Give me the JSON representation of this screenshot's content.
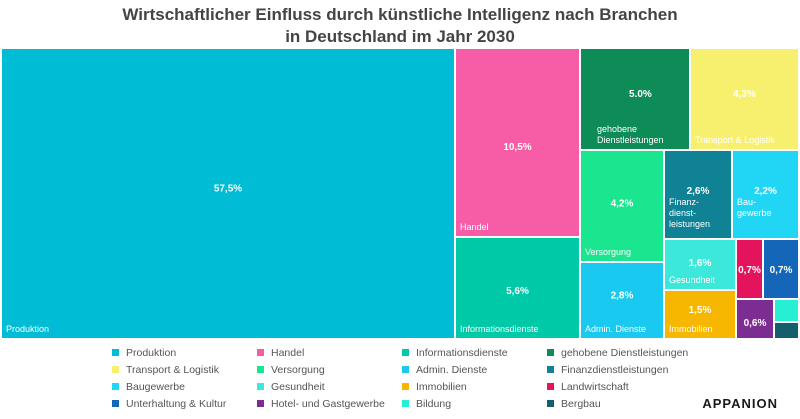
{
  "title": {
    "line1": "Wirtschaftlicher Einfluss durch künstliche Intelligenz nach Branchen",
    "line2": "in Deutschland im Jahr 2030"
  },
  "brand": "APPANION",
  "chart_data": {
    "type": "treemap",
    "title": "Wirtschaftlicher Einfluss durch künstliche Intelligenz nach Branchen in Deutschland im Jahr 2030",
    "unit": "%",
    "items": [
      {
        "id": "produktion",
        "name": "Produktion",
        "value": 57.5,
        "value_label": "57,5%",
        "tile_label": "Produktion",
        "color": "#00BCD4"
      },
      {
        "id": "handel",
        "name": "Handel",
        "value": 10.5,
        "value_label": "10,5%",
        "tile_label": "Handel",
        "color": "#F75CA6"
      },
      {
        "id": "informationsdienste",
        "name": "Informationsdienste",
        "value": 5.6,
        "value_label": "5,6%",
        "tile_label": "Informationsdienste",
        "color": "#00C9A7"
      },
      {
        "id": "gehobene",
        "name": "gehobene Dienstleistungen",
        "value": 5.0,
        "value_label": "5.0%",
        "tile_label": "gehobene Dienstleistungen",
        "color": "#0E8C58"
      },
      {
        "id": "transport",
        "name": "Transport & Logistik",
        "value": 4.3,
        "value_label": "4,3%",
        "tile_label": "Transport & Logistik",
        "color": "#F7F06E"
      },
      {
        "id": "versorgung",
        "name": "Versorgung",
        "value": 4.2,
        "value_label": "4,2%",
        "tile_label": "Versorgung",
        "color": "#19E68F"
      },
      {
        "id": "admin",
        "name": "Admin. Dienste",
        "value": 2.8,
        "value_label": "2,8%",
        "tile_label": "Admin. Dienste",
        "color": "#19C9F0"
      },
      {
        "id": "finanz",
        "name": "Finanzdienstleistungen",
        "value": 2.6,
        "value_label": "2,6%",
        "tile_label": "Finanz-dienst-leistungen",
        "color": "#0F8296"
      },
      {
        "id": "bau",
        "name": "Baugewerbe",
        "value": 2.2,
        "value_label": "2,2%",
        "tile_label": "Bau-gewerbe",
        "color": "#21D6F5"
      },
      {
        "id": "gesundheit",
        "name": "Gesundheit",
        "value": 1.6,
        "value_label": "1,6%",
        "tile_label": "Gesundheit",
        "color": "#3CE8DA"
      },
      {
        "id": "immobilien",
        "name": "Immobilien",
        "value": 1.5,
        "value_label": "1,5%",
        "tile_label": "Immobilien",
        "color": "#F7B600"
      },
      {
        "id": "landwirtschaft",
        "name": "Landwirtschaft",
        "value": 0.7,
        "value_label": "0,7%",
        "tile_label": "",
        "color": "#E3135E"
      },
      {
        "id": "unterhaltung",
        "name": "Unterhaltung & Kultur",
        "value": 0.7,
        "value_label": "0,7%",
        "tile_label": "",
        "color": "#1467B8"
      },
      {
        "id": "hotel",
        "name": "Hotel- und Gastgewerbe",
        "value": 0.6,
        "value_label": "0,6%",
        "tile_label": "",
        "color": "#7B2D91"
      },
      {
        "id": "bildung",
        "name": "Bildung",
        "value": 0.3,
        "value_label": "",
        "tile_label": "",
        "color": "#27EFD3"
      },
      {
        "id": "bergbau",
        "name": "Bergbau",
        "value": 0.3,
        "value_label": "",
        "tile_label": "",
        "color": "#145F6B"
      }
    ]
  },
  "legend": [
    {
      "label": "Produktion",
      "color": "#00BCD4"
    },
    {
      "label": "Handel",
      "color": "#F75CA6"
    },
    {
      "label": "Informationsdienste",
      "color": "#00C9A7"
    },
    {
      "label": "gehobene Dienstleistungen",
      "color": "#0E8C58"
    },
    {
      "label": "Transport & Logistik",
      "color": "#F7F06E"
    },
    {
      "label": "Versorgung",
      "color": "#19E68F"
    },
    {
      "label": "Admin. Dienste",
      "color": "#19C9F0"
    },
    {
      "label": "Finanzdienstleistungen",
      "color": "#0F8296"
    },
    {
      "label": "Baugewerbe",
      "color": "#21D6F5"
    },
    {
      "label": "Gesundheit",
      "color": "#3CE8DA"
    },
    {
      "label": "Immobilien",
      "color": "#F7B600"
    },
    {
      "label": "Landwirtschaft",
      "color": "#E3135E"
    },
    {
      "label": "Unterhaltung & Kultur",
      "color": "#1467B8"
    },
    {
      "label": "Hotel- und Gastgewerbe",
      "color": "#7B2D91"
    },
    {
      "label": "Bildung",
      "color": "#27EFD3"
    },
    {
      "label": "Bergbau",
      "color": "#145F6B"
    }
  ]
}
